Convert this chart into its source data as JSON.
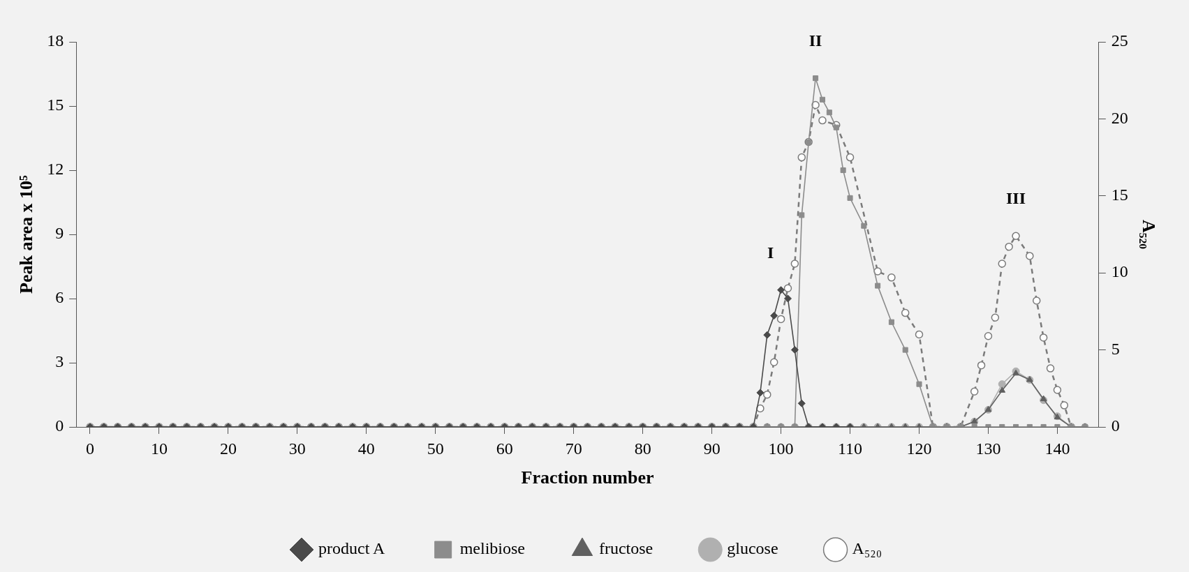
{
  "chart_data": {
    "type": "line",
    "xlabel": "Fraction number",
    "ylabel": "Peak area x 10⁵",
    "y2label": "A₅₂₀",
    "xlim": [
      -2,
      146
    ],
    "xticks": [
      0,
      10,
      20,
      30,
      40,
      50,
      60,
      70,
      80,
      90,
      100,
      110,
      120,
      130,
      140
    ],
    "ylim": [
      0,
      18
    ],
    "yticks": [
      0,
      3,
      6,
      9,
      12,
      15,
      18
    ],
    "y2lim": [
      0,
      25
    ],
    "y2ticks": [
      0,
      5,
      10,
      15,
      20,
      25
    ],
    "grid": false,
    "legend": "bottom",
    "annotations": [
      "I",
      "II",
      "III"
    ],
    "series": [
      {
        "name": "product A",
        "color": "#4a4a4a",
        "marker": "diamond",
        "line_style": "solid",
        "x": [
          0,
          2,
          4,
          6,
          8,
          10,
          12,
          14,
          16,
          18,
          20,
          22,
          24,
          26,
          28,
          30,
          32,
          34,
          36,
          38,
          40,
          42,
          44,
          46,
          48,
          50,
          52,
          54,
          56,
          58,
          60,
          62,
          64,
          66,
          68,
          70,
          72,
          74,
          76,
          78,
          80,
          82,
          84,
          86,
          88,
          90,
          92,
          94,
          96,
          97,
          98,
          99,
          100,
          101,
          102,
          103,
          104,
          106,
          108,
          110
        ],
        "values": [
          0,
          0,
          0,
          0,
          0,
          0,
          0,
          0,
          0,
          0,
          0,
          0,
          0,
          0,
          0,
          0,
          0,
          0,
          0,
          0,
          0,
          0,
          0,
          0,
          0,
          0,
          0,
          0,
          0,
          0,
          0,
          0,
          0,
          0,
          0,
          0,
          0,
          0,
          0,
          0,
          0,
          0,
          0,
          0,
          0,
          0,
          0,
          0,
          0,
          1.6,
          4.3,
          5.2,
          6.4,
          6,
          3.6,
          1.1,
          0,
          0,
          0,
          0
        ]
      },
      {
        "name": "melibiose",
        "color": "#8c8c8c",
        "marker": "square",
        "line_style": "solid",
        "x": [
          0,
          2,
          4,
          6,
          8,
          10,
          12,
          14,
          16,
          18,
          20,
          22,
          24,
          26,
          28,
          30,
          32,
          34,
          36,
          38,
          40,
          42,
          44,
          46,
          48,
          50,
          52,
          54,
          56,
          58,
          60,
          62,
          64,
          66,
          68,
          70,
          72,
          74,
          76,
          78,
          80,
          82,
          84,
          86,
          88,
          90,
          92,
          94,
          96,
          98,
          100,
          102,
          103,
          104,
          105,
          106,
          107,
          108,
          109,
          110,
          112,
          114,
          116,
          118,
          120,
          122,
          124,
          126,
          128,
          130,
          132,
          134,
          136,
          138,
          140,
          142,
          144
        ],
        "values": [
          0,
          0,
          0,
          0,
          0,
          0,
          0,
          0,
          0,
          0,
          0,
          0,
          0,
          0,
          0,
          0,
          0,
          0,
          0,
          0,
          0,
          0,
          0,
          0,
          0,
          0,
          0,
          0,
          0,
          0,
          0,
          0,
          0,
          0,
          0,
          0,
          0,
          0,
          0,
          0,
          0,
          0,
          0,
          0,
          0,
          0,
          0,
          0,
          0,
          0,
          0,
          0,
          9.9,
          13.3,
          16.3,
          15.3,
          14.7,
          14,
          12,
          10.7,
          9.4,
          6.6,
          4.9,
          3.6,
          2,
          0,
          0,
          0,
          0,
          0,
          0,
          0,
          0,
          0,
          0,
          0,
          0
        ]
      },
      {
        "name": "fructose",
        "color": "#606060",
        "marker": "triangle",
        "line_style": "solid",
        "x": [
          0,
          2,
          4,
          6,
          8,
          10,
          12,
          14,
          16,
          18,
          20,
          22,
          24,
          26,
          28,
          30,
          32,
          34,
          36,
          38,
          40,
          42,
          44,
          46,
          48,
          50,
          52,
          54,
          56,
          58,
          60,
          62,
          64,
          66,
          68,
          70,
          72,
          74,
          76,
          78,
          80,
          82,
          84,
          86,
          88,
          90,
          92,
          94,
          96,
          98,
          100,
          102,
          104,
          106,
          108,
          110,
          112,
          114,
          116,
          118,
          120,
          122,
          124,
          126,
          128,
          130,
          132,
          134,
          136,
          138,
          140,
          142,
          144
        ],
        "values": [
          0,
          0,
          0,
          0,
          0,
          0,
          0,
          0,
          0,
          0,
          0,
          0,
          0,
          0,
          0,
          0,
          0,
          0,
          0,
          0,
          0,
          0,
          0,
          0,
          0,
          0,
          0,
          0,
          0,
          0,
          0,
          0,
          0,
          0,
          0,
          0,
          0,
          0,
          0,
          0,
          0,
          0,
          0,
          0,
          0,
          0,
          0,
          0,
          0,
          0,
          0,
          0,
          0,
          0,
          0,
          0,
          0,
          0,
          0,
          0,
          0,
          0,
          0,
          0,
          0.25,
          0.8,
          1.7,
          2.5,
          2.2,
          1.3,
          0.45,
          0,
          0
        ]
      },
      {
        "name": "glucose",
        "color": "#b0b0b0",
        "marker": "circle",
        "line_style": "solid",
        "x": [
          0,
          2,
          4,
          6,
          8,
          10,
          12,
          14,
          16,
          18,
          20,
          22,
          24,
          26,
          28,
          30,
          32,
          34,
          36,
          38,
          40,
          42,
          44,
          46,
          48,
          50,
          52,
          54,
          56,
          58,
          60,
          62,
          64,
          66,
          68,
          70,
          72,
          74,
          76,
          78,
          80,
          82,
          84,
          86,
          88,
          90,
          92,
          94,
          96,
          98,
          100,
          102,
          104,
          106,
          108,
          110,
          112,
          114,
          116,
          118,
          120,
          122,
          124,
          126,
          128,
          130,
          132,
          134,
          136,
          138,
          140,
          142,
          144
        ],
        "values": [
          0,
          0,
          0,
          0,
          0,
          0,
          0,
          0,
          0,
          0,
          0,
          0,
          0,
          0,
          0,
          0,
          0,
          0,
          0,
          0,
          0,
          0,
          0,
          0,
          0,
          0,
          0,
          0,
          0,
          0,
          0,
          0,
          0,
          0,
          0,
          0,
          0,
          0,
          0,
          0,
          0,
          0,
          0,
          0,
          0,
          0,
          0,
          0,
          0,
          0,
          0,
          0,
          0,
          0,
          0,
          0,
          0,
          0,
          0,
          0,
          0,
          0,
          0,
          0,
          0.25,
          0.8,
          2,
          2.6,
          2.2,
          1.25,
          0.5,
          0,
          0
        ]
      },
      {
        "name": "A₅₂₀",
        "color": "#7a7a7a",
        "marker": "circle",
        "line_style": "dashed",
        "axis": "y2",
        "x": [
          0,
          2,
          4,
          6,
          8,
          10,
          12,
          14,
          16,
          18,
          20,
          22,
          24,
          26,
          28,
          30,
          32,
          34,
          36,
          38,
          40,
          42,
          44,
          46,
          48,
          50,
          52,
          54,
          56,
          58,
          60,
          62,
          64,
          66,
          68,
          70,
          72,
          74,
          76,
          78,
          80,
          82,
          84,
          86,
          88,
          90,
          92,
          94,
          96,
          97,
          98,
          99,
          100,
          101,
          102,
          103,
          104,
          105,
          106,
          108,
          110,
          114,
          116,
          118,
          120,
          122,
          124,
          126,
          128,
          129,
          130,
          131,
          132,
          133,
          134,
          136,
          137,
          138,
          139,
          140,
          141,
          142
        ],
        "values": [
          0,
          0,
          0,
          0,
          0,
          0,
          0,
          0,
          0,
          0,
          0,
          0,
          0,
          0,
          0,
          0,
          0,
          0,
          0,
          0,
          0,
          0,
          0,
          0,
          0,
          0,
          0,
          0,
          0,
          0,
          0,
          0,
          0,
          0,
          0,
          0,
          0,
          0,
          0,
          0,
          0,
          0,
          0,
          0,
          0,
          0,
          0,
          0,
          0,
          1.2,
          2.1,
          4.2,
          7,
          9,
          10.6,
          17.5,
          18.5,
          20.9,
          19.9,
          19.6,
          17.5,
          10.1,
          9.7,
          7.4,
          6,
          0,
          0,
          0,
          2.3,
          4,
          5.9,
          7.1,
          10.6,
          11.7,
          12.4,
          11.1,
          8.2,
          5.8,
          3.8,
          2.4,
          1.4,
          0
        ]
      }
    ]
  }
}
